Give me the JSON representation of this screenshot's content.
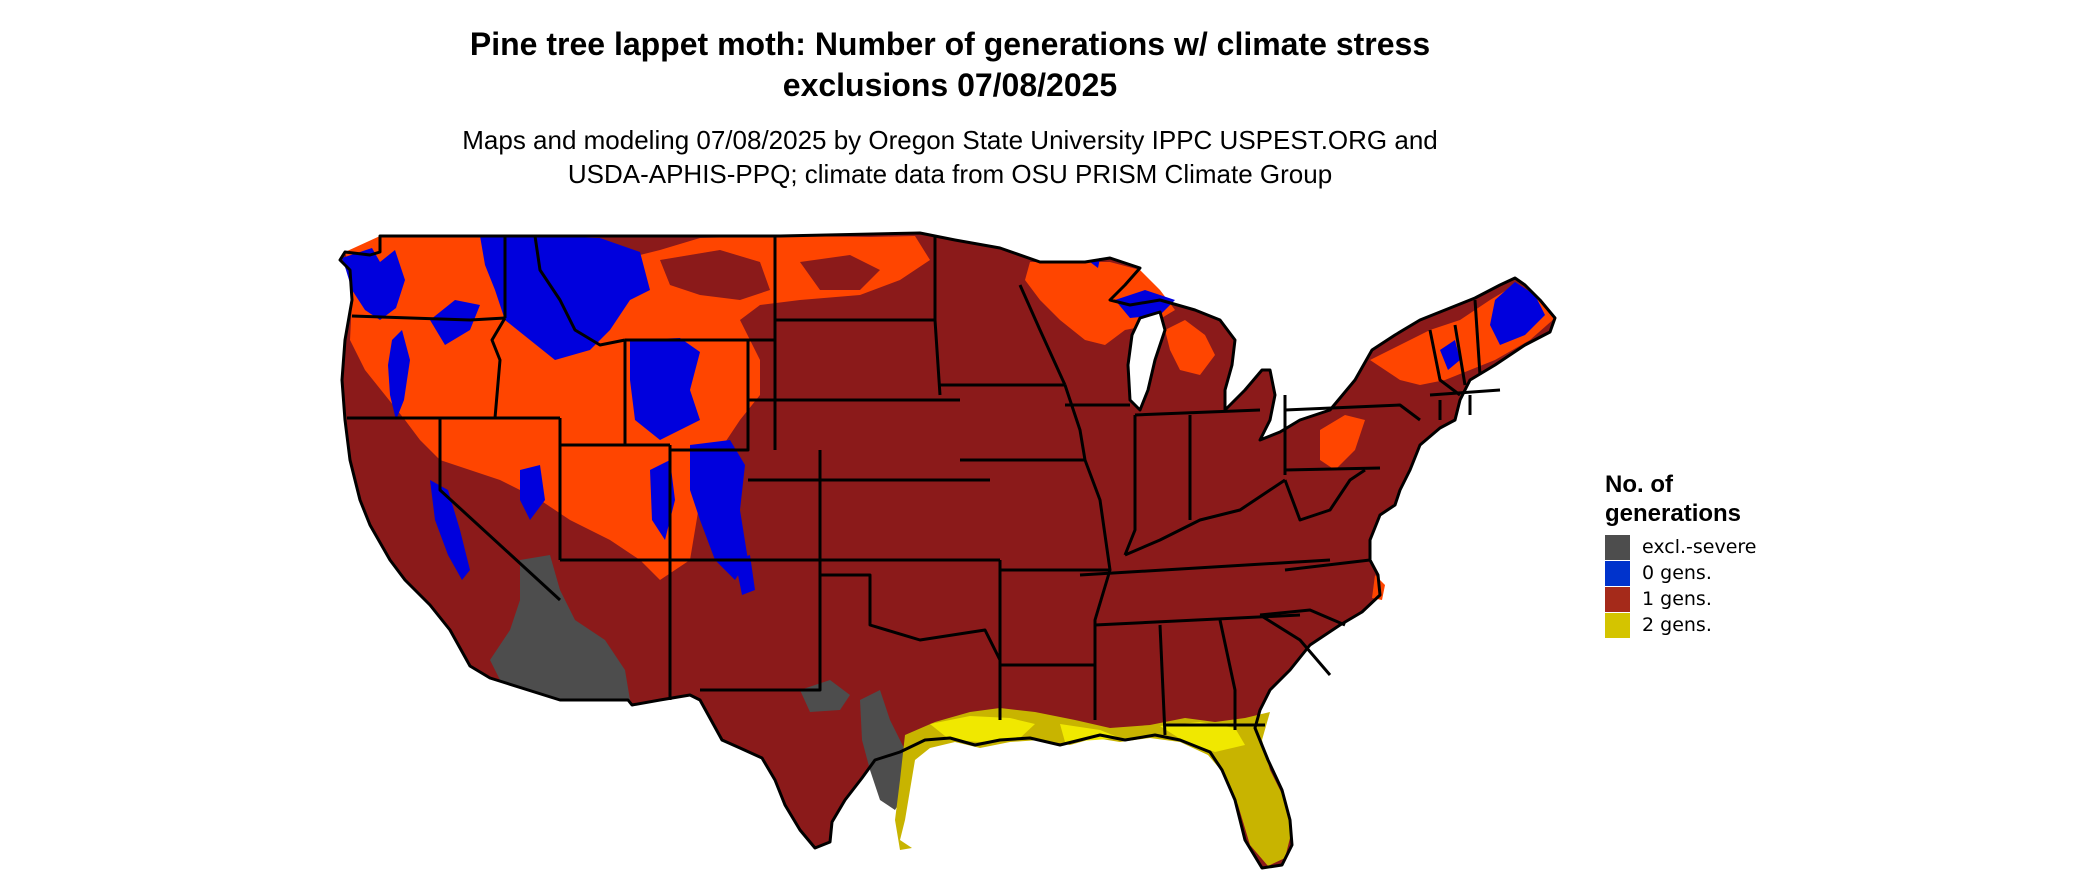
{
  "title": {
    "line1": "Pine tree lappet moth: Number of generations w/ climate stress",
    "line2": "exclusions 07/08/2025"
  },
  "subtitle": {
    "line1": "Maps and modeling 07/08/2025 by Oregon State University IPPC USPEST.ORG and",
    "line2": "USDA-APHIS-PPQ; climate data from OSU PRISM Climate Group"
  },
  "legend": {
    "title_line1": "No. of",
    "title_line2": "generations",
    "items": [
      {
        "label": "excl.-severe",
        "color": "#4d4d4d"
      },
      {
        "label": "0 gens.",
        "color": "#0033cc"
      },
      {
        "label": "1 gens.",
        "color": "#a52a1a"
      },
      {
        "label": "2 gens.",
        "color": "#d4c400"
      }
    ]
  },
  "map_colors": {
    "one_gen_dark": "#8b1a1a",
    "one_gen_bright": "#ff4500",
    "zero_gens": "#0000dd",
    "excluded": "#4d4d4d",
    "two_gens": "#c8b400",
    "two_gens_bright": "#f0e800",
    "state_border": "#000000"
  }
}
